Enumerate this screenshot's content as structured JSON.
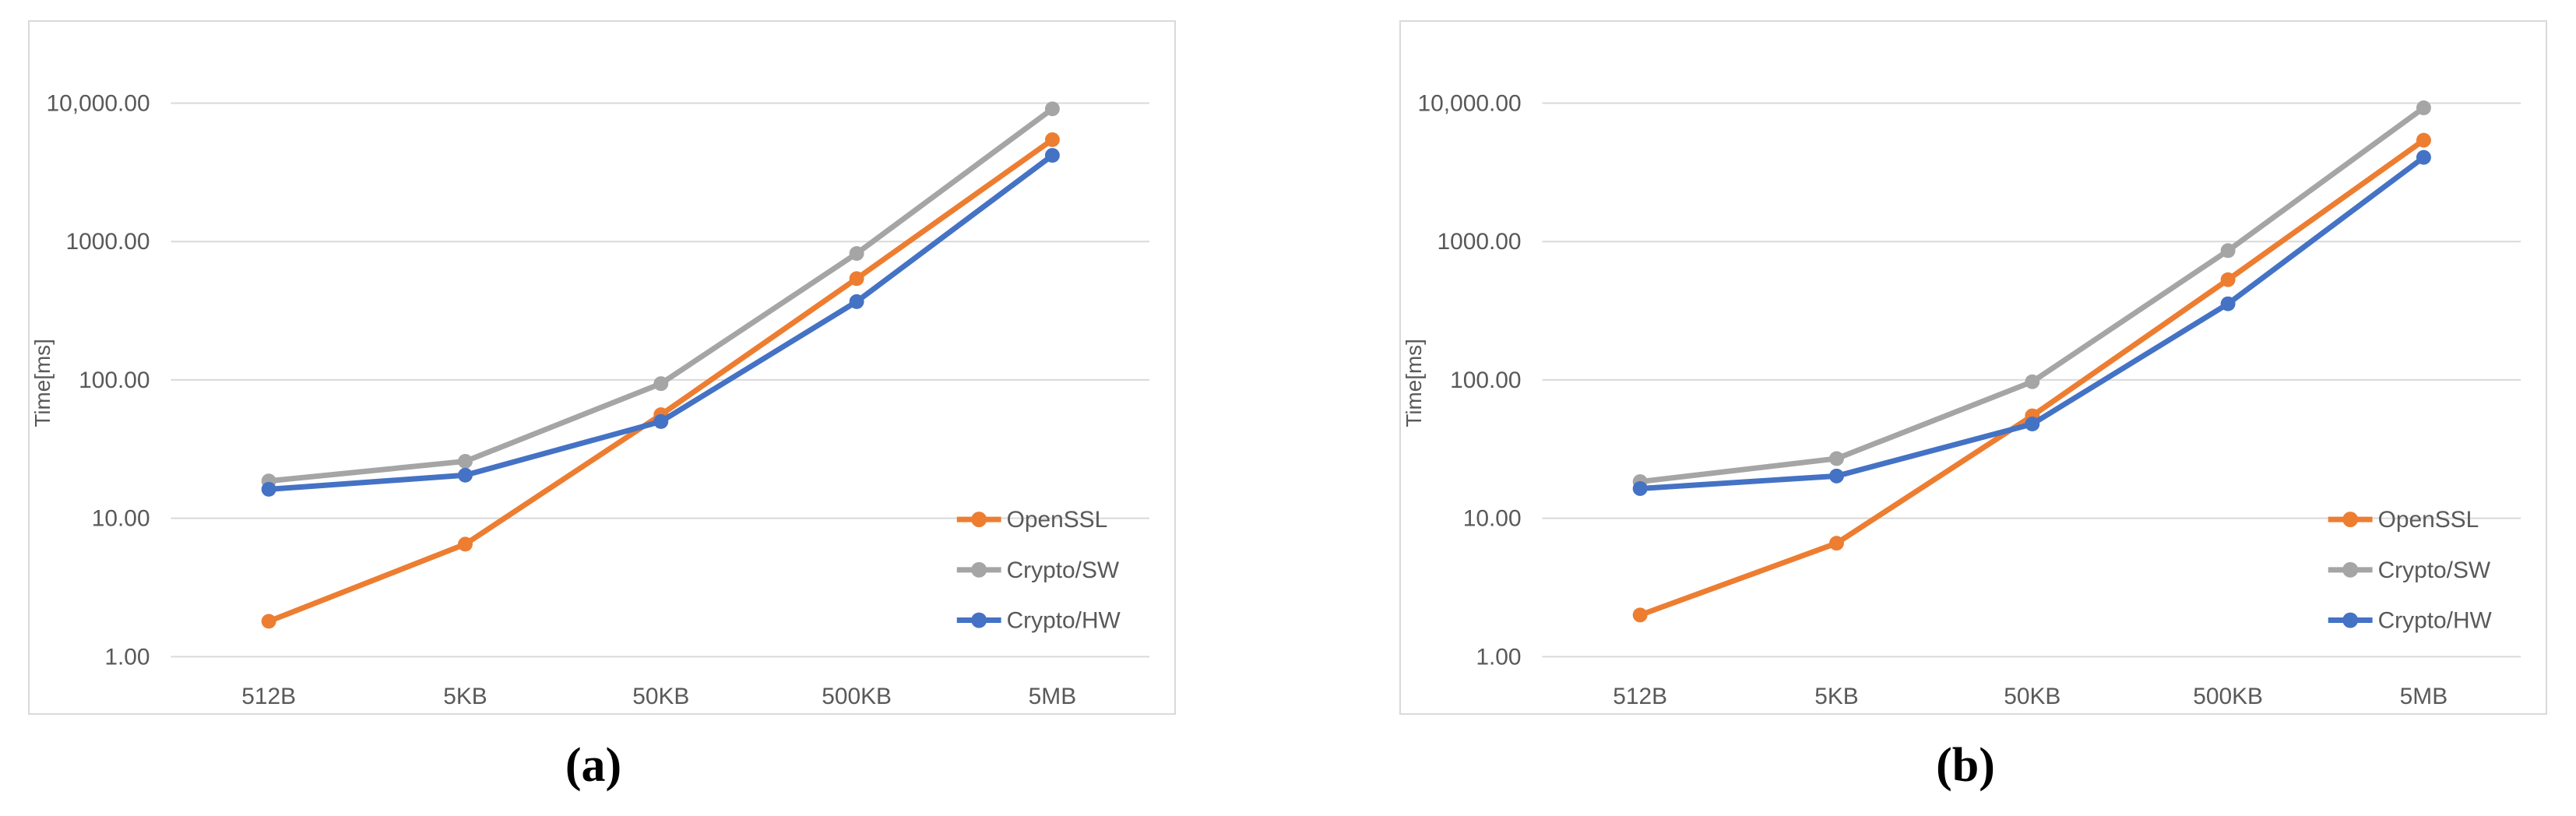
{
  "page": {
    "background_color": "#FFFFFF"
  },
  "style_colors": {
    "gridline": "#D9D9D9",
    "chart_border": "#D9D9D9",
    "axis_text": "#595959",
    "series_openssl": "#ED7D31",
    "series_crypto_sw": "#A5A5A5",
    "series_crypto_hw": "#4472C4"
  },
  "chart_data": [
    {
      "id": "a",
      "caption": "(a)",
      "type": "line",
      "title": "",
      "xlabel": "",
      "ylabel": "Time[ms]",
      "y_scale": "log",
      "ylim": [
        1,
        10000
      ],
      "grid": "horizontal",
      "legend_position": "inside-right",
      "categories": [
        "512B",
        "5KB",
        "50KB",
        "500KB",
        "5MB"
      ],
      "y_ticks": [
        {
          "value": 1,
          "label": "1.00"
        },
        {
          "value": 10,
          "label": "10.00"
        },
        {
          "value": 100,
          "label": "100.00"
        },
        {
          "value": 1000,
          "label": "1000.00"
        },
        {
          "value": 10000,
          "label": "10,000.00"
        }
      ],
      "series": [
        {
          "name": "OpenSSL",
          "color": "#ED7D31",
          "marker": "circle",
          "values": [
            1.8,
            6.5,
            56,
            540,
            5450
          ]
        },
        {
          "name": "Crypto/SW",
          "color": "#A5A5A5",
          "marker": "circle",
          "values": [
            18.6,
            25.8,
            94,
            820,
            9100
          ]
        },
        {
          "name": "Crypto/HW",
          "color": "#4472C4",
          "marker": "circle",
          "values": [
            16.2,
            20.5,
            50,
            368,
            4200
          ]
        }
      ]
    },
    {
      "id": "b",
      "caption": "(b)",
      "type": "line",
      "title": "",
      "xlabel": "",
      "ylabel": "Time[ms]",
      "y_scale": "log",
      "ylim": [
        1,
        10000
      ],
      "grid": "horizontal",
      "legend_position": "inside-right",
      "categories": [
        "512B",
        "5KB",
        "50KB",
        "500KB",
        "5MB"
      ],
      "y_ticks": [
        {
          "value": 1,
          "label": "1.00"
        },
        {
          "value": 10,
          "label": "10.00"
        },
        {
          "value": 100,
          "label": "100.00"
        },
        {
          "value": 1000,
          "label": "1000.00"
        },
        {
          "value": 10000,
          "label": "10,000.00"
        }
      ],
      "series": [
        {
          "name": "OpenSSL",
          "color": "#ED7D31",
          "marker": "circle",
          "values": [
            2.0,
            6.6,
            55,
            530,
            5400
          ]
        },
        {
          "name": "Crypto/SW",
          "color": "#A5A5A5",
          "marker": "circle",
          "values": [
            18.4,
            27,
            97,
            860,
            9250
          ]
        },
        {
          "name": "Crypto/HW",
          "color": "#4472C4",
          "marker": "circle",
          "values": [
            16.4,
            20.2,
            48,
            355,
            4060
          ]
        }
      ]
    }
  ]
}
